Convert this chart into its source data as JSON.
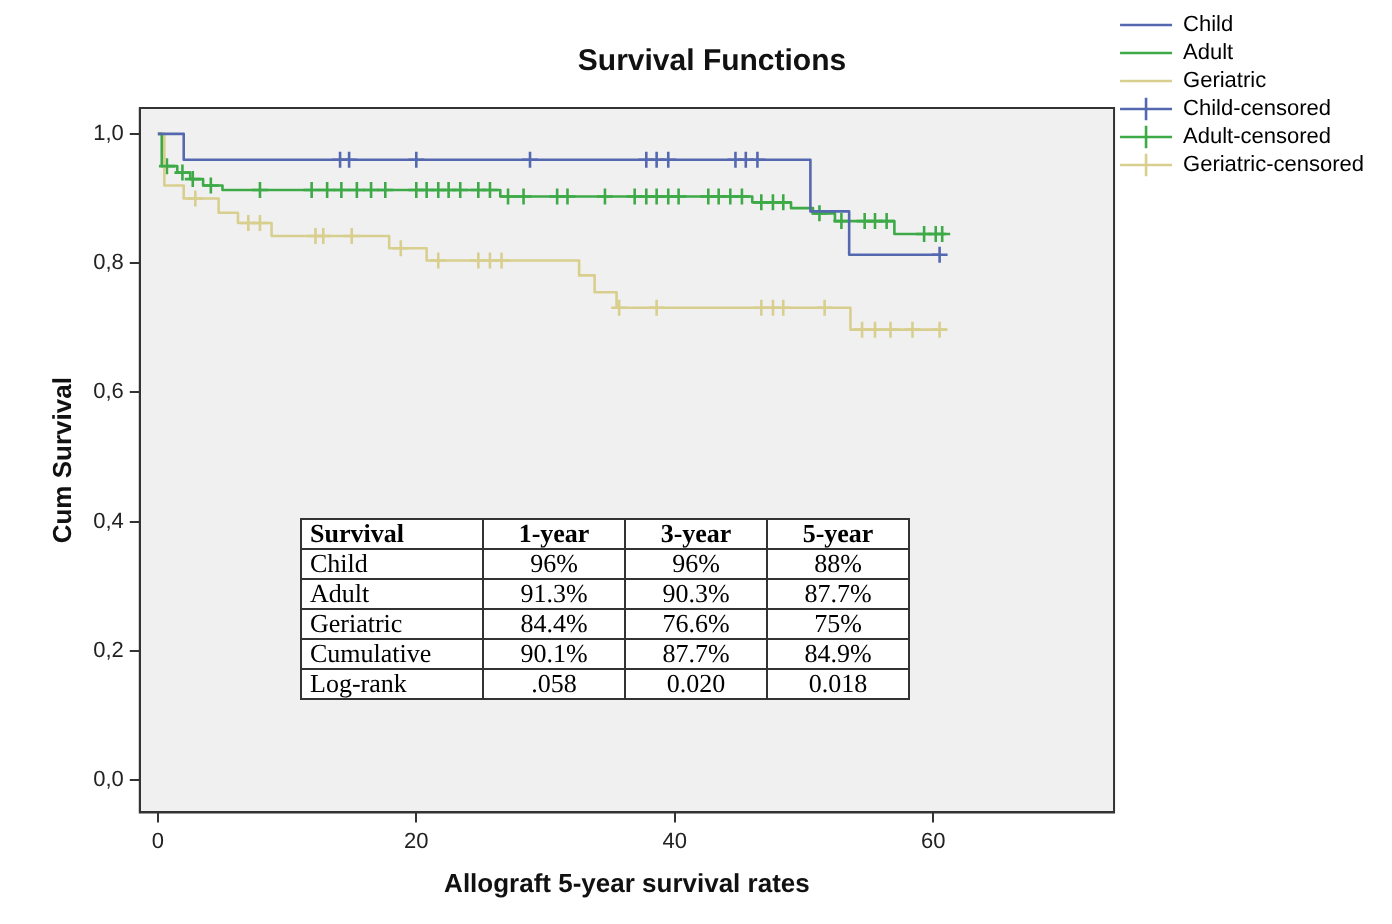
{
  "chart_data": {
    "type": "step",
    "title": "Survival Functions",
    "xlabel": "Allograft 5-year survival rates",
    "ylabel": "Cum Survival",
    "xlim": [
      -1.4,
      74
    ],
    "xticks": [
      0,
      20,
      40,
      60
    ],
    "ylim": [
      -0.05,
      1.04
    ],
    "yticks": [
      {
        "value": 0,
        "label": "0,0"
      },
      {
        "value": 0.2,
        "label": "0,2"
      },
      {
        "value": 0.4,
        "label": "0,4"
      },
      {
        "value": 0.6,
        "label": "0,6"
      },
      {
        "value": 0.8,
        "label": "0,8"
      },
      {
        "value": 1,
        "label": "1,0"
      }
    ],
    "grid": false,
    "legend": "top right",
    "series": [
      {
        "name": "Child",
        "color": "#5468b0",
        "x": [
          0,
          2,
          50.5,
          53.5,
          60.5
        ],
        "values": [
          1,
          0.96,
          0.88,
          0.813,
          0.813
        ]
      },
      {
        "name": "Adult",
        "color": "#3daa47",
        "x": [
          0,
          0.3,
          1.5,
          2.5,
          3.5,
          5,
          26.5,
          46,
          49,
          50.7,
          52.4,
          57,
          61
        ],
        "values": [
          1,
          0.95,
          0.94,
          0.93,
          0.92,
          0.913,
          0.903,
          0.894,
          0.885,
          0.877,
          0.865,
          0.845,
          0.845
        ]
      },
      {
        "name": "Geriatric",
        "color": "#d8cf8f",
        "x": [
          0,
          0.5,
          2,
          4.7,
          6.2,
          8.8,
          17.9,
          20.8,
          32.6,
          33.8,
          35.5,
          53.6,
          61
        ],
        "values": [
          1,
          0.92,
          0.9,
          0.878,
          0.862,
          0.842,
          0.823,
          0.804,
          0.781,
          0.755,
          0.731,
          0.697,
          0.697
        ]
      },
      {
        "name": "Child-censored",
        "type": "scatter",
        "marker": "cross",
        "color": "#5468b0",
        "x": [
          14.1,
          14.8,
          20,
          28.8,
          37.8,
          38.6,
          39.5,
          44.7,
          45.5,
          46.4,
          60.5
        ],
        "values": [
          0.96,
          0.96,
          0.96,
          0.96,
          0.96,
          0.96,
          0.96,
          0.96,
          0.96,
          0.96,
          0.813
        ]
      },
      {
        "name": "Adult-censored",
        "type": "scatter",
        "marker": "cross",
        "color": "#3daa47",
        "x": [
          0.7,
          1.9,
          2.7,
          4.1,
          7.9,
          11.9,
          13.1,
          14.2,
          15.4,
          16.5,
          17.6,
          20,
          20.8,
          21.7,
          22.5,
          23.4,
          24.8,
          25.7,
          27.1,
          28.3,
          30.9,
          31.7,
          34.6,
          36.9,
          37.8,
          38.6,
          39.5,
          40.3,
          42.6,
          43.4,
          44.3,
          45.2,
          46.7,
          47.6,
          48.4,
          51.2,
          52.9,
          54.7,
          55.5,
          56.4,
          59.3,
          60.2,
          60.7
        ],
        "values": [
          0.95,
          0.94,
          0.93,
          0.92,
          0.913,
          0.913,
          0.913,
          0.913,
          0.913,
          0.913,
          0.913,
          0.913,
          0.913,
          0.913,
          0.913,
          0.913,
          0.913,
          0.913,
          0.903,
          0.903,
          0.903,
          0.903,
          0.903,
          0.903,
          0.903,
          0.903,
          0.903,
          0.903,
          0.903,
          0.903,
          0.903,
          0.903,
          0.894,
          0.894,
          0.894,
          0.877,
          0.865,
          0.865,
          0.865,
          0.865,
          0.845,
          0.845,
          0.845
        ]
      },
      {
        "name": "Geriatric-censored",
        "type": "scatter",
        "marker": "cross",
        "color": "#d8cf8f",
        "x": [
          2.9,
          7,
          7.9,
          12.2,
          12.8,
          15,
          18.8,
          21.7,
          24.8,
          25.7,
          26.6,
          35.7,
          38.6,
          46.7,
          47.6,
          48.4,
          51.6,
          54.5,
          55.5,
          56.7,
          58.4,
          60.5
        ],
        "values": [
          0.9,
          0.862,
          0.862,
          0.842,
          0.842,
          0.842,
          0.823,
          0.804,
          0.804,
          0.804,
          0.804,
          0.731,
          0.731,
          0.731,
          0.731,
          0.731,
          0.731,
          0.697,
          0.697,
          0.697,
          0.697,
          0.697
        ]
      }
    ],
    "annotations": [
      "Survival",
      "1-year",
      "3-year",
      "5-year",
      "Child",
      "96%",
      "96%",
      "88%",
      "Adult",
      "91.3%",
      "90.3%",
      "87.7%",
      "Geriatric",
      "84.4%",
      "76.6%",
      "75%",
      "Cumulative",
      "90.1%",
      "87.7%",
      "84.9%",
      "Log-rank",
      ".058",
      "0.020",
      "0.018"
    ]
  }
}
